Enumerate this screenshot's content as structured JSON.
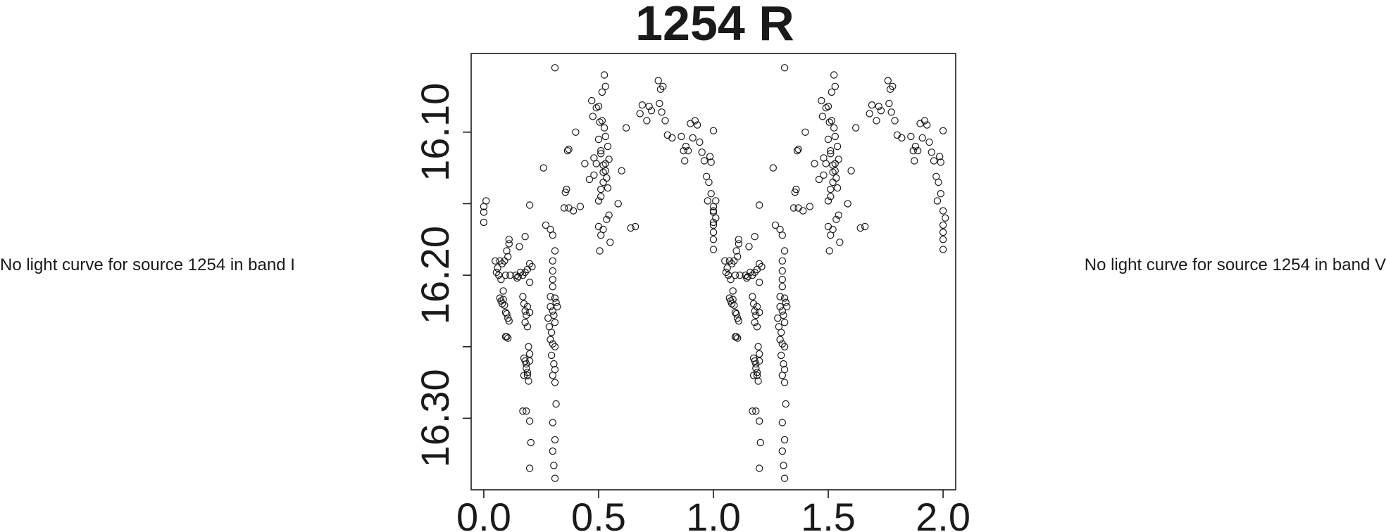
{
  "left_note": "No light curve for source 1254 in band I",
  "right_note": "No light curve for source 1254 in band V",
  "chart_data": {
    "type": "scatter",
    "title": "1254 R",
    "xlabel": "",
    "ylabel": "",
    "xlim": [
      -0.055,
      2.055
    ],
    "ylim": [
      16.35,
      16.045
    ],
    "y_inverted": true,
    "grid": false,
    "legend": "none",
    "marker": "open-circle",
    "colors": {
      "marker": "#1a1a1a",
      "axis": "#1a1a1a",
      "text": "#1a1a1a"
    },
    "x_ticks": [
      0.0,
      0.5,
      1.0,
      1.5,
      2.0
    ],
    "x_tick_labels": [
      "0.0",
      "0.5",
      "1.0",
      "1.5",
      "2.0"
    ],
    "y_ticks": [
      16.3,
      16.2,
      16.1
    ],
    "y_tick_labels": [
      "16.30",
      "16.20",
      "16.10"
    ],
    "y_minor_ticks": [
      16.25,
      16.15
    ],
    "points": [
      [
        0.0,
        16.152
      ],
      [
        0.0,
        16.156
      ],
      [
        0.0,
        16.163
      ],
      [
        0.01,
        16.148
      ],
      [
        0.05,
        16.19
      ],
      [
        0.06,
        16.195
      ],
      [
        0.065,
        16.2
      ],
      [
        0.055,
        16.198
      ],
      [
        0.07,
        16.19
      ],
      [
        0.075,
        16.203
      ],
      [
        0.08,
        16.192
      ],
      [
        0.085,
        16.211
      ],
      [
        0.09,
        16.19
      ],
      [
        0.095,
        16.2
      ],
      [
        0.1,
        16.183
      ],
      [
        0.105,
        16.187
      ],
      [
        0.11,
        16.178
      ],
      [
        0.115,
        16.2
      ],
      [
        0.07,
        16.216
      ],
      [
        0.075,
        16.218
      ],
      [
        0.08,
        16.22
      ],
      [
        0.085,
        16.217
      ],
      [
        0.09,
        16.221
      ],
      [
        0.095,
        16.226
      ],
      [
        0.1,
        16.227
      ],
      [
        0.105,
        16.23
      ],
      [
        0.11,
        16.232
      ],
      [
        0.095,
        16.243
      ],
      [
        0.1,
        16.243
      ],
      [
        0.105,
        16.244
      ],
      [
        0.11,
        16.175
      ],
      [
        0.14,
        16.2
      ],
      [
        0.145,
        16.202
      ],
      [
        0.15,
        16.201
      ],
      [
        0.16,
        16.198
      ],
      [
        0.17,
        16.2
      ],
      [
        0.18,
        16.198
      ],
      [
        0.19,
        16.196
      ],
      [
        0.2,
        16.192
      ],
      [
        0.2,
        16.205
      ],
      [
        0.21,
        16.194
      ],
      [
        0.155,
        16.18
      ],
      [
        0.18,
        16.173
      ],
      [
        0.2,
        16.151
      ],
      [
        0.17,
        16.215
      ],
      [
        0.175,
        16.22
      ],
      [
        0.18,
        16.225
      ],
      [
        0.185,
        16.228
      ],
      [
        0.19,
        16.222
      ],
      [
        0.2,
        16.226
      ],
      [
        0.18,
        16.233
      ],
      [
        0.19,
        16.236
      ],
      [
        0.175,
        16.258
      ],
      [
        0.18,
        16.26
      ],
      [
        0.185,
        16.265
      ],
      [
        0.19,
        16.27
      ],
      [
        0.195,
        16.274
      ],
      [
        0.2,
        16.26
      ],
      [
        0.175,
        16.27
      ],
      [
        0.19,
        16.268
      ],
      [
        0.185,
        16.262
      ],
      [
        0.2,
        16.255
      ],
      [
        0.195,
        16.25
      ],
      [
        0.17,
        16.295
      ],
      [
        0.185,
        16.295
      ],
      [
        0.2,
        16.302
      ],
      [
        0.205,
        16.317
      ],
      [
        0.2,
        16.335
      ],
      [
        0.26,
        16.125
      ],
      [
        0.27,
        16.165
      ],
      [
        0.29,
        16.168
      ],
      [
        0.3,
        16.172
      ],
      [
        0.31,
        16.183
      ],
      [
        0.3,
        16.19
      ],
      [
        0.3,
        16.197
      ],
      [
        0.3,
        16.203
      ],
      [
        0.3,
        16.208
      ],
      [
        0.29,
        16.215
      ],
      [
        0.29,
        16.222
      ],
      [
        0.3,
        16.225
      ],
      [
        0.31,
        16.233
      ],
      [
        0.28,
        16.23
      ],
      [
        0.285,
        16.236
      ],
      [
        0.295,
        16.24
      ],
      [
        0.305,
        16.228
      ],
      [
        0.31,
        16.216
      ],
      [
        0.315,
        16.219
      ],
      [
        0.32,
        16.222
      ],
      [
        0.29,
        16.245
      ],
      [
        0.3,
        16.248
      ],
      [
        0.31,
        16.25
      ],
      [
        0.295,
        16.256
      ],
      [
        0.305,
        16.262
      ],
      [
        0.31,
        16.266
      ],
      [
        0.3,
        16.27
      ],
      [
        0.31,
        16.275
      ],
      [
        0.315,
        16.29
      ],
      [
        0.3,
        16.303
      ],
      [
        0.31,
        16.315
      ],
      [
        0.3,
        16.323
      ],
      [
        0.305,
        16.333
      ],
      [
        0.31,
        16.342
      ],
      [
        0.31,
        16.055
      ],
      [
        0.35,
        16.153
      ],
      [
        0.37,
        16.153
      ],
      [
        0.355,
        16.142
      ],
      [
        0.36,
        16.14
      ],
      [
        0.365,
        16.113
      ],
      [
        0.37,
        16.112
      ],
      [
        0.39,
        16.155
      ],
      [
        0.4,
        16.1
      ],
      [
        0.42,
        16.152
      ],
      [
        0.44,
        16.122
      ],
      [
        0.46,
        16.133
      ],
      [
        0.48,
        16.13
      ],
      [
        0.49,
        16.083
      ],
      [
        0.5,
        16.082
      ],
      [
        0.5,
        16.105
      ],
      [
        0.5,
        16.148
      ],
      [
        0.51,
        16.145
      ],
      [
        0.51,
        16.14
      ],
      [
        0.52,
        16.135
      ],
      [
        0.52,
        16.128
      ],
      [
        0.53,
        16.127
      ],
      [
        0.535,
        16.132
      ],
      [
        0.54,
        16.139
      ],
      [
        0.51,
        16.115
      ],
      [
        0.52,
        16.123
      ],
      [
        0.53,
        16.122
      ],
      [
        0.505,
        16.093
      ],
      [
        0.515,
        16.092
      ],
      [
        0.525,
        16.097
      ],
      [
        0.515,
        16.072
      ],
      [
        0.53,
        16.068
      ],
      [
        0.525,
        16.06
      ],
      [
        0.51,
        16.113
      ],
      [
        0.5,
        16.166
      ],
      [
        0.51,
        16.172
      ],
      [
        0.52,
        16.168
      ],
      [
        0.505,
        16.183
      ],
      [
        0.535,
        16.161
      ],
      [
        0.545,
        16.158
      ],
      [
        0.55,
        16.177
      ],
      [
        0.48,
        16.118
      ],
      [
        0.49,
        16.122
      ],
      [
        0.47,
        16.078
      ],
      [
        0.475,
        16.089
      ],
      [
        0.53,
        16.103
      ],
      [
        0.54,
        16.11
      ],
      [
        0.545,
        16.119
      ],
      [
        0.585,
        16.15
      ],
      [
        0.6,
        16.127
      ],
      [
        0.62,
        16.097
      ],
      [
        0.64,
        16.167
      ],
      [
        0.66,
        16.166
      ],
      [
        0.68,
        16.087
      ],
      [
        0.69,
        16.081
      ],
      [
        0.71,
        16.092
      ],
      [
        0.72,
        16.082
      ],
      [
        0.73,
        16.085
      ],
      [
        0.76,
        16.064
      ],
      [
        0.77,
        16.07
      ],
      [
        0.78,
        16.068
      ],
      [
        0.765,
        16.08
      ],
      [
        0.775,
        16.086
      ],
      [
        0.79,
        16.092
      ],
      [
        0.8,
        16.102
      ],
      [
        0.82,
        16.104
      ],
      [
        0.86,
        16.103
      ],
      [
        0.87,
        16.113
      ],
      [
        0.875,
        16.12
      ],
      [
        0.88,
        16.11
      ],
      [
        0.89,
        16.113
      ],
      [
        0.9,
        16.094
      ],
      [
        0.91,
        16.104
      ],
      [
        0.92,
        16.092
      ],
      [
        0.93,
        16.095
      ],
      [
        0.94,
        16.107
      ],
      [
        0.95,
        16.114
      ],
      [
        0.96,
        16.12
      ],
      [
        0.97,
        16.131
      ],
      [
        0.975,
        16.148
      ],
      [
        0.98,
        16.135
      ],
      [
        0.985,
        16.117
      ],
      [
        0.99,
        16.121
      ],
      [
        1.0,
        16.099
      ],
      [
        0.99,
        16.143
      ],
      [
        1.0,
        16.155
      ],
      [
        1.01,
        16.16
      ],
      [
        1.0,
        16.165
      ],
      [
        1.0,
        16.17
      ],
      [
        1.0,
        16.175
      ],
      [
        1.0,
        16.182
      ]
    ]
  }
}
